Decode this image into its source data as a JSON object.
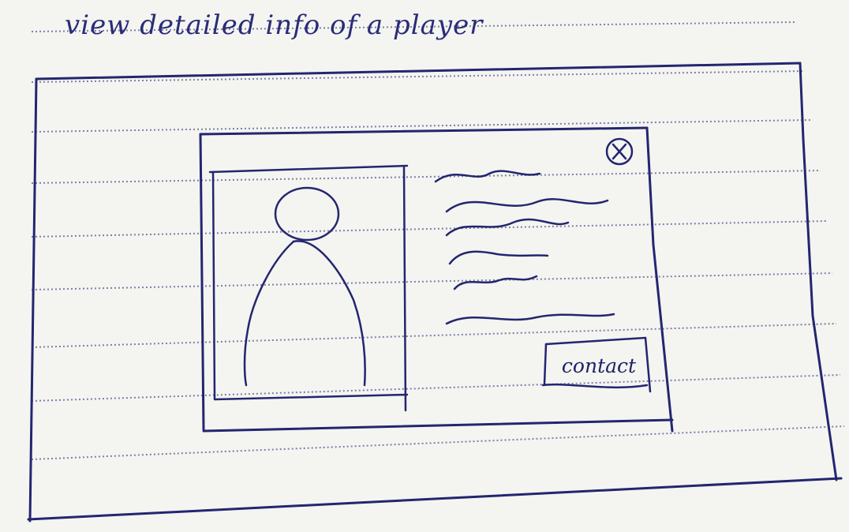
{
  "page": {
    "title": "view detailed info of a player"
  },
  "modal": {
    "close_icon": "close-icon",
    "photo_icon": "person-silhouette-icon",
    "contact_label": "contact"
  },
  "colors": {
    "paper": "#f4f4f1",
    "rule": "#56598f",
    "ink": "#23266e"
  }
}
